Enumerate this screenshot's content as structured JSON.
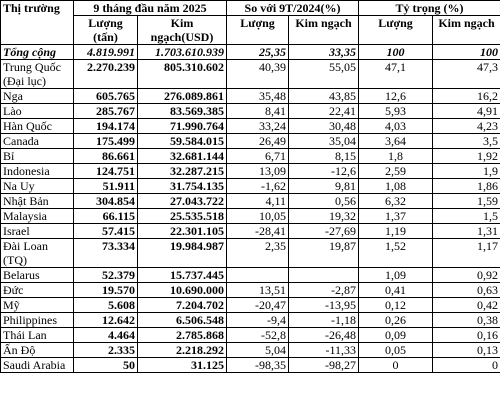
{
  "table": {
    "header": {
      "top": [
        "Thị trường",
        "9 tháng đầu năm 2025",
        "So với 9T/2024(%)",
        "Tỷ trọng (%)"
      ],
      "sub": [
        "Lượng (tấn)",
        "Kim ngạch(USD)",
        "Lượng",
        "Kim ngạch",
        "Lượng",
        "Kim ngạch"
      ]
    },
    "rows": [
      [
        "Tổng cộng",
        "4.819.991",
        "1.703.610.939",
        "25,35",
        "33,35",
        "100",
        "100"
      ],
      [
        "Trung Quốc (Đại lục)",
        "2.270.239",
        "805.310.602",
        "40,39",
        "55,05",
        "47,1",
        "47,3"
      ],
      [
        "Nga",
        "605.765",
        "276.089.861",
        "35,48",
        "43,85",
        "12,6",
        "16,2"
      ],
      [
        "Lào",
        "285.767",
        "83.569.385",
        "8,41",
        "22,41",
        "5,93",
        "4,91"
      ],
      [
        "Hàn Quốc",
        "194.174",
        "71.990.764",
        "33,24",
        "30,48",
        "4,03",
        "4,23"
      ],
      [
        "Canada",
        "175.499",
        "59.584.015",
        "26,49",
        "35,04",
        "3,64",
        "3,5"
      ],
      [
        "Bỉ",
        "86.661",
        "32.681.144",
        "6,71",
        "8,15",
        "1,8",
        "1,92"
      ],
      [
        "Indonesia",
        "124.751",
        "32.287.215",
        "13,09",
        "-12,6",
        "2,59",
        "1,9"
      ],
      [
        "Na Uy",
        "51.911",
        "31.754.135",
        "-1,62",
        "9,81",
        "1,08",
        "1,86"
      ],
      [
        "Nhật Bản",
        "304.854",
        "27.043.722",
        "4,11",
        "0,56",
        "6,32",
        "1,59"
      ],
      [
        "Malaysia",
        "66.115",
        "25.535.518",
        "10,05",
        "19,32",
        "1,37",
        "1,5"
      ],
      [
        "Israel",
        "57.415",
        "22.301.105",
        "-28,41",
        "-27,69",
        "1,19",
        "1,31"
      ],
      [
        "Đài Loan (TQ)",
        "73.334",
        "19.984.987",
        "2,35",
        "19,87",
        "1,52",
        "1,17"
      ],
      [
        "Belarus",
        "52.379",
        "15.737.445",
        null,
        null,
        "1,09",
        "0,92"
      ],
      [
        "Đức",
        "19.570",
        "10.690.000",
        "13,51",
        "-2,87",
        "0,41",
        "0,63"
      ],
      [
        "Mỹ",
        "5.608",
        "7.204.702",
        "-20,47",
        "-13,95",
        "0,12",
        "0,42"
      ],
      [
        "Philippines",
        "12.642",
        "6.506.548",
        "-9,4",
        "-1,18",
        "0,26",
        "0,38"
      ],
      [
        "Thái Lan",
        "4.464",
        "2.785.868",
        "-52,8",
        "-26,48",
        "0,09",
        "0,16"
      ],
      [
        "Ấn Độ",
        "2.335",
        "2.218.292",
        "5,04",
        "-11,33",
        "0,05",
        "0,13"
      ],
      [
        "Saudi Arabia",
        "50",
        "31.125",
        "-98,35",
        "-98,27",
        "0",
        "0"
      ]
    ]
  }
}
